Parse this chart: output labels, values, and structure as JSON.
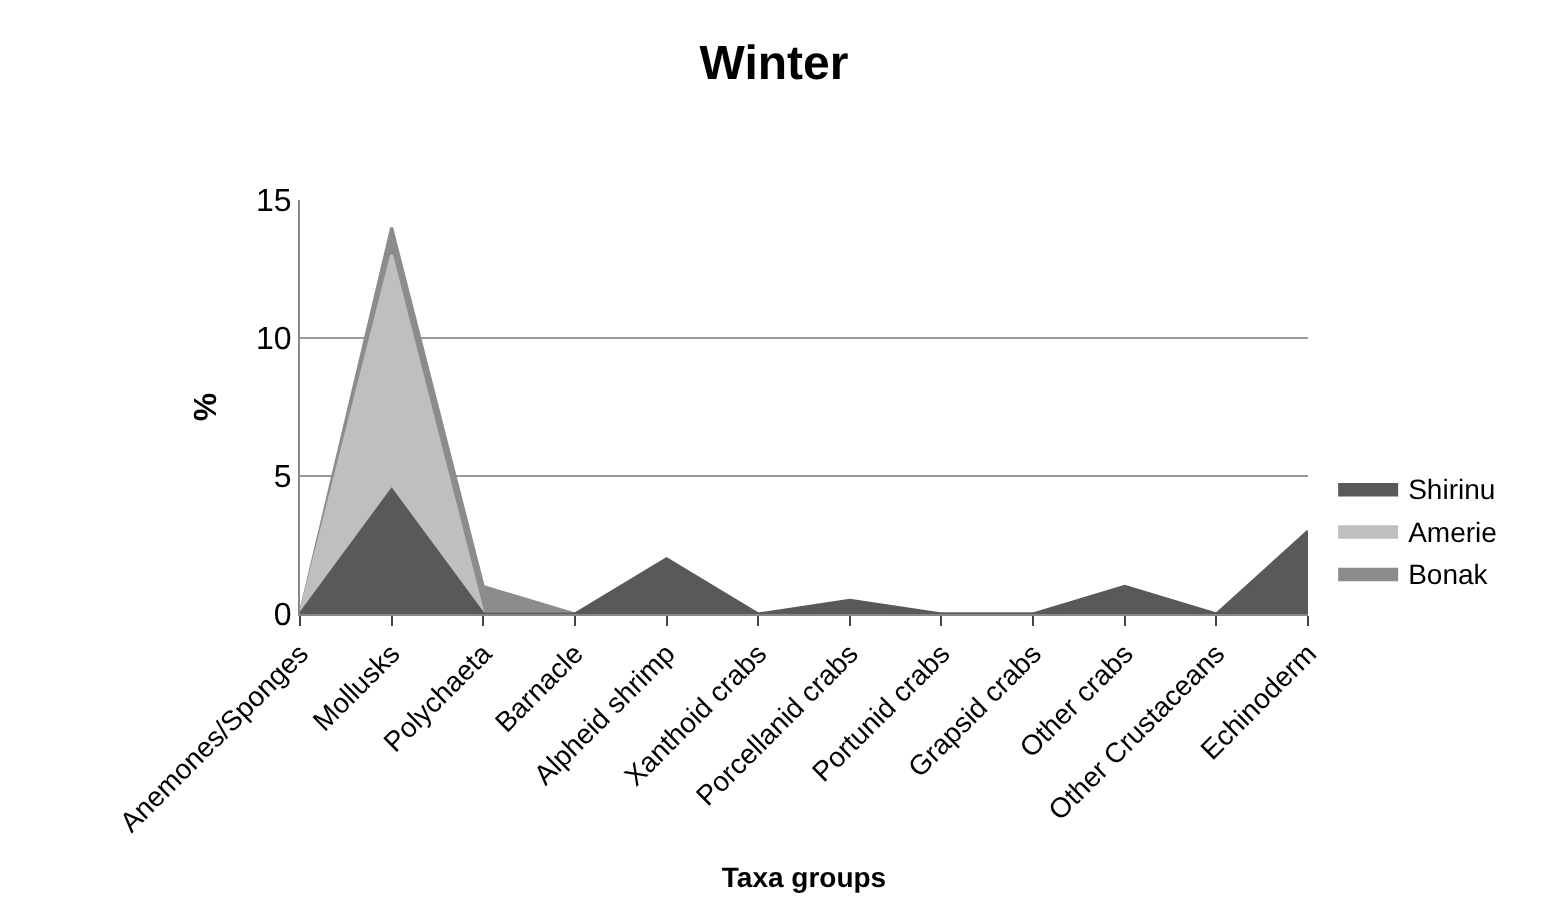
{
  "chart_data": {
    "type": "area",
    "title": "Winter",
    "xlabel": "Taxa groups",
    "ylabel": "%",
    "categories": [
      "Anemones/Sponges",
      "Mollusks",
      "Polychaeta",
      "Barnacle",
      "Alpheid shrimp",
      "Xanthoid crabs",
      "Porcellanid crabs",
      "Portunid crabs",
      "Grapsid crabs",
      "Other crabs",
      "Other Crustaceans",
      "Echinoderm"
    ],
    "series": [
      {
        "name": "Shirinu",
        "color": "#595959",
        "values": [
          0,
          4.5,
          0,
          0,
          2,
          0,
          0.5,
          0,
          0,
          1,
          0,
          3
        ]
      },
      {
        "name": "Amerie",
        "color": "#bfbfbf",
        "values": [
          0,
          13,
          0,
          0,
          0,
          0,
          0,
          0,
          0,
          0,
          0,
          0
        ]
      },
      {
        "name": "Bonak",
        "color": "#8c8c8c",
        "values": [
          0,
          14,
          1,
          0,
          0,
          0,
          0,
          0,
          0,
          0,
          0,
          0
        ]
      }
    ],
    "ylim": [
      0,
      15
    ],
    "yticks": [
      0,
      5,
      10,
      15
    ],
    "grid": "y",
    "legend": "right"
  }
}
